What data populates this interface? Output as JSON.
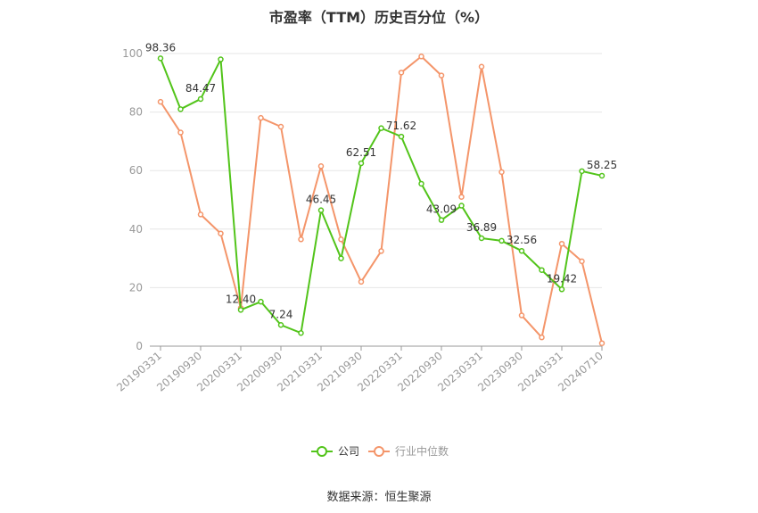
{
  "chart_data": {
    "type": "line",
    "title": "市盈率（TTM）历史百分位（%）",
    "xlabel": "",
    "ylabel": "",
    "ylim": [
      0,
      100
    ],
    "yticks": [
      0,
      20,
      40,
      60,
      80,
      100
    ],
    "grid": true,
    "legend_position": "bottom",
    "x": [
      "20190331",
      "20190630",
      "20190930",
      "20191231",
      "20200331",
      "20200630",
      "20200930",
      "20201231",
      "20210331",
      "20210630",
      "20210930",
      "20211231",
      "20220331",
      "20220630",
      "20220930",
      "20221231",
      "20230331",
      "20230630",
      "20230930",
      "20231231",
      "20240331",
      "20240630",
      "20240710"
    ],
    "xtick_labels": [
      "20190331",
      "20190930",
      "20200331",
      "20200930",
      "20210331",
      "20210930",
      "20220331",
      "20220930",
      "20230331",
      "20230930",
      "20240331",
      "20240710"
    ],
    "series": [
      {
        "name": "公司",
        "color": "#52c41a",
        "values": [
          98.36,
          81.0,
          84.47,
          98.0,
          12.4,
          15.2,
          7.24,
          4.5,
          46.45,
          30.0,
          62.51,
          74.5,
          71.62,
          55.5,
          43.09,
          48.0,
          36.89,
          36.0,
          32.56,
          26.0,
          19.42,
          59.8,
          58.25
        ]
      },
      {
        "name": "行业中位数",
        "color": "#f4956a",
        "values": [
          83.5,
          73.0,
          45.0,
          38.5,
          13.0,
          78.0,
          75.0,
          36.5,
          61.5,
          36.5,
          22.0,
          32.5,
          93.5,
          99.0,
          92.5,
          51.0,
          95.5,
          59.5,
          10.5,
          3.0,
          35.0,
          29.0,
          1.0
        ]
      }
    ],
    "data_labels": [
      {
        "series": 0,
        "index": 0,
        "text": "98.36"
      },
      {
        "series": 0,
        "index": 2,
        "text": "84.47"
      },
      {
        "series": 0,
        "index": 4,
        "text": "12.40"
      },
      {
        "series": 0,
        "index": 6,
        "text": "7.24"
      },
      {
        "series": 0,
        "index": 8,
        "text": "46.45"
      },
      {
        "series": 0,
        "index": 10,
        "text": "62.51"
      },
      {
        "series": 0,
        "index": 12,
        "text": "71.62"
      },
      {
        "series": 0,
        "index": 14,
        "text": "43.09"
      },
      {
        "series": 0,
        "index": 16,
        "text": "36.89"
      },
      {
        "series": 0,
        "index": 18,
        "text": "32.56"
      },
      {
        "series": 0,
        "index": 20,
        "text": "19.42"
      },
      {
        "series": 0,
        "index": 22,
        "text": "58.25"
      }
    ]
  },
  "source": "数据来源：恒生聚源"
}
